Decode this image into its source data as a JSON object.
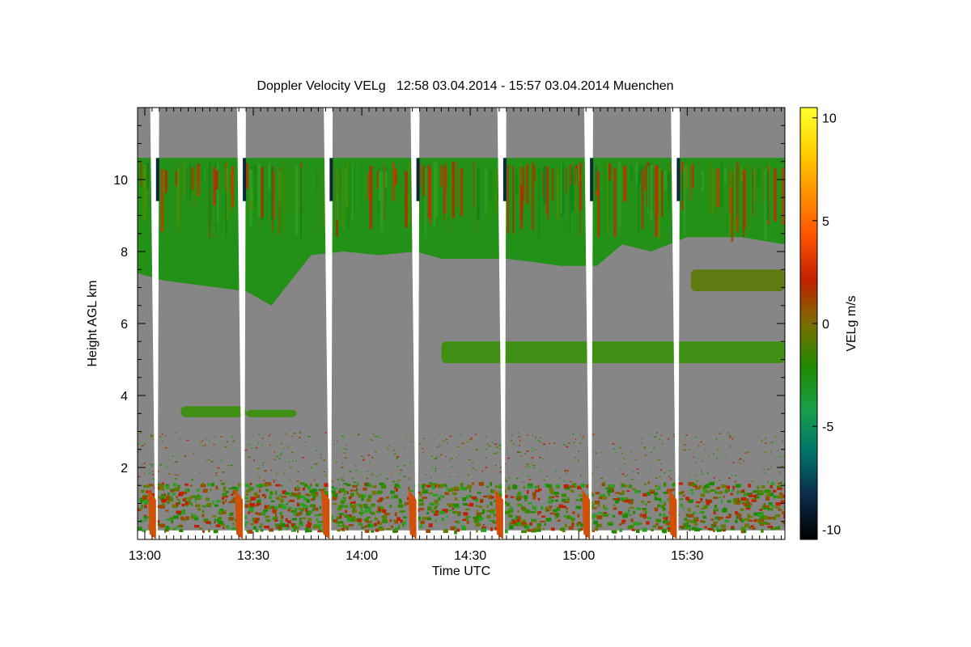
{
  "chart_data": {
    "type": "heatmap",
    "title": "Doppler Velocity VELg   12:58 03.04.2014 - 15:57 03.04.2014 Muenchen",
    "xlabel": "Time UTC",
    "ylabel": "Height AGL km",
    "x_ticks": [
      "13:00",
      "13:30",
      "14:00",
      "14:30",
      "15:00",
      "15:30"
    ],
    "x_tick_minutes": [
      780,
      810,
      840,
      870,
      900,
      930
    ],
    "xlim_minutes": [
      778,
      957
    ],
    "y_ticks": [
      "2",
      "4",
      "6",
      "8",
      "10"
    ],
    "y_tick_values": [
      2,
      4,
      6,
      8,
      10
    ],
    "ylim": [
      0,
      12
    ],
    "grid": false,
    "colorbar": {
      "label": "VELg m/s",
      "ticks": [
        "10",
        "5",
        "0",
        "-5",
        "-10"
      ],
      "tick_values": [
        10,
        5,
        0,
        -5,
        -10
      ],
      "range": [
        -10.5,
        10.5
      ],
      "colors": [
        "#000000",
        "#0b2a4a",
        "#00726a",
        "#17a04a",
        "#1f8a00",
        "#7a6d00",
        "#c02000",
        "#ff5000",
        "#ff9000",
        "#ffd000",
        "#ffff30"
      ]
    },
    "background_color": "#868686",
    "scan_gap_start_minutes": [
      781.5,
      805.5,
      829.5,
      853.5,
      877.5,
      901.5,
      925.5
    ],
    "cirrus_layer": {
      "top_km": 10.6,
      "bottom_km_by_minute": [
        [
          778,
          7.4
        ],
        [
          785,
          7.2
        ],
        [
          800,
          7.0
        ],
        [
          808,
          6.9
        ],
        [
          815,
          6.5
        ],
        [
          826,
          7.9
        ],
        [
          835,
          8.0
        ],
        [
          845,
          7.9
        ],
        [
          855,
          8.0
        ],
        [
          862,
          7.8
        ],
        [
          870,
          7.8
        ],
        [
          880,
          7.8
        ],
        [
          888,
          7.7
        ],
        [
          895,
          7.6
        ],
        [
          905,
          7.6
        ],
        [
          912,
          8.2
        ],
        [
          920,
          8.0
        ],
        [
          930,
          8.4
        ],
        [
          945,
          8.4
        ],
        [
          957,
          8.2
        ]
      ]
    },
    "layers": [
      {
        "start_minute": 931,
        "end_minute": 957,
        "bottom_km": 6.9,
        "top_km": 7.5
      },
      {
        "start_minute": 862,
        "end_minute": 957,
        "bottom_km": 4.9,
        "top_km": 5.5
      },
      {
        "start_minute": 790,
        "end_minute": 808,
        "bottom_km": 3.4,
        "top_km": 3.7
      },
      {
        "start_minute": 808,
        "end_minute": 822,
        "bottom_km": 3.4,
        "top_km": 3.6
      }
    ],
    "boundary_layer_top_km": 1.6
  }
}
